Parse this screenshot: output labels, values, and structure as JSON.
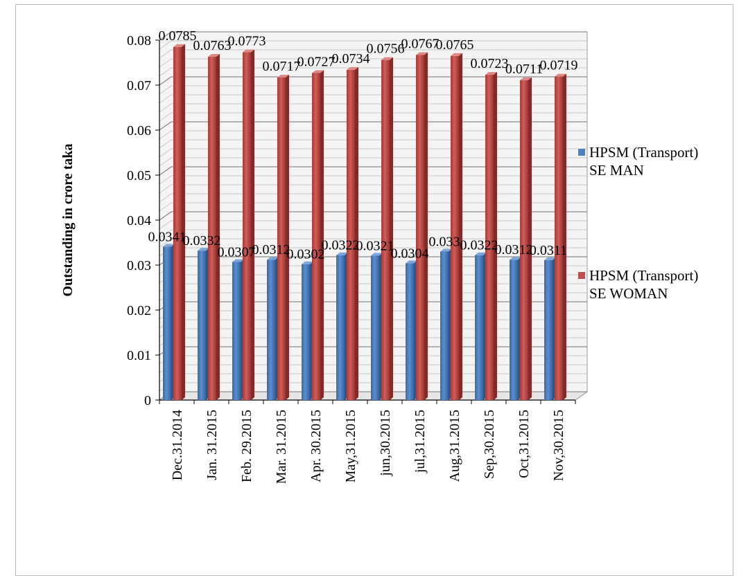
{
  "chart_data": {
    "type": "bar",
    "title": "",
    "xlabel": "",
    "ylabel": "Outstanding in crore taka",
    "ylim": [
      0,
      0.08
    ],
    "yticks": [
      "0",
      "0.01",
      "0.02",
      "0.03",
      "0.04",
      "0.05",
      "0.06",
      "0.07",
      "0.08"
    ],
    "grid": true,
    "legend_position": "right",
    "categories": [
      "Dec.31.2014",
      "Jan. 31.2015",
      "Feb. 29.2015",
      "Mar. 31.2015",
      "Apr. 30.2015",
      "May,31.2015",
      "jun,30.2015",
      "jul,31.2015",
      "Aug,31.2015",
      "Sep,30.2015",
      "Oct,31.2015",
      "Nov,30.2015"
    ],
    "series": [
      {
        "name": "HPSM (Transport) SE MAN",
        "color": "#4f81bd",
        "values": [
          0.0341,
          0.0332,
          0.0307,
          0.0312,
          0.0302,
          0.0322,
          0.0321,
          0.0304,
          0.033,
          0.0322,
          0.0312,
          0.0311
        ],
        "labels": [
          "0.0341",
          "0.0332",
          "0.0307",
          "0.0312",
          "0.0302",
          "0.0322",
          "0.0321",
          "0.0304",
          "0.033",
          "0.0322",
          "0.0312",
          "0.0311"
        ]
      },
      {
        "name": "HPSM (Transport) SE WOMAN",
        "color": "#c0504d",
        "values": [
          0.0785,
          0.0763,
          0.0773,
          0.0717,
          0.0727,
          0.0734,
          0.0756,
          0.0767,
          0.0765,
          0.0723,
          0.0711,
          0.0719
        ],
        "labels": [
          "0.0785",
          "0.0763",
          "0.0773",
          "0.0717",
          "0.0727",
          "0.0734",
          "0.0756",
          "0.0767",
          "0.0765",
          "0.0723",
          "0.0711",
          "0.0719"
        ]
      }
    ]
  },
  "legend": {
    "items": [
      {
        "label": "HPSM (Transport)\nSE MAN",
        "color": "#4f81bd"
      },
      {
        "label": "HPSM (Transport)\nSE WOMAN",
        "color": "#c0504d"
      }
    ]
  }
}
